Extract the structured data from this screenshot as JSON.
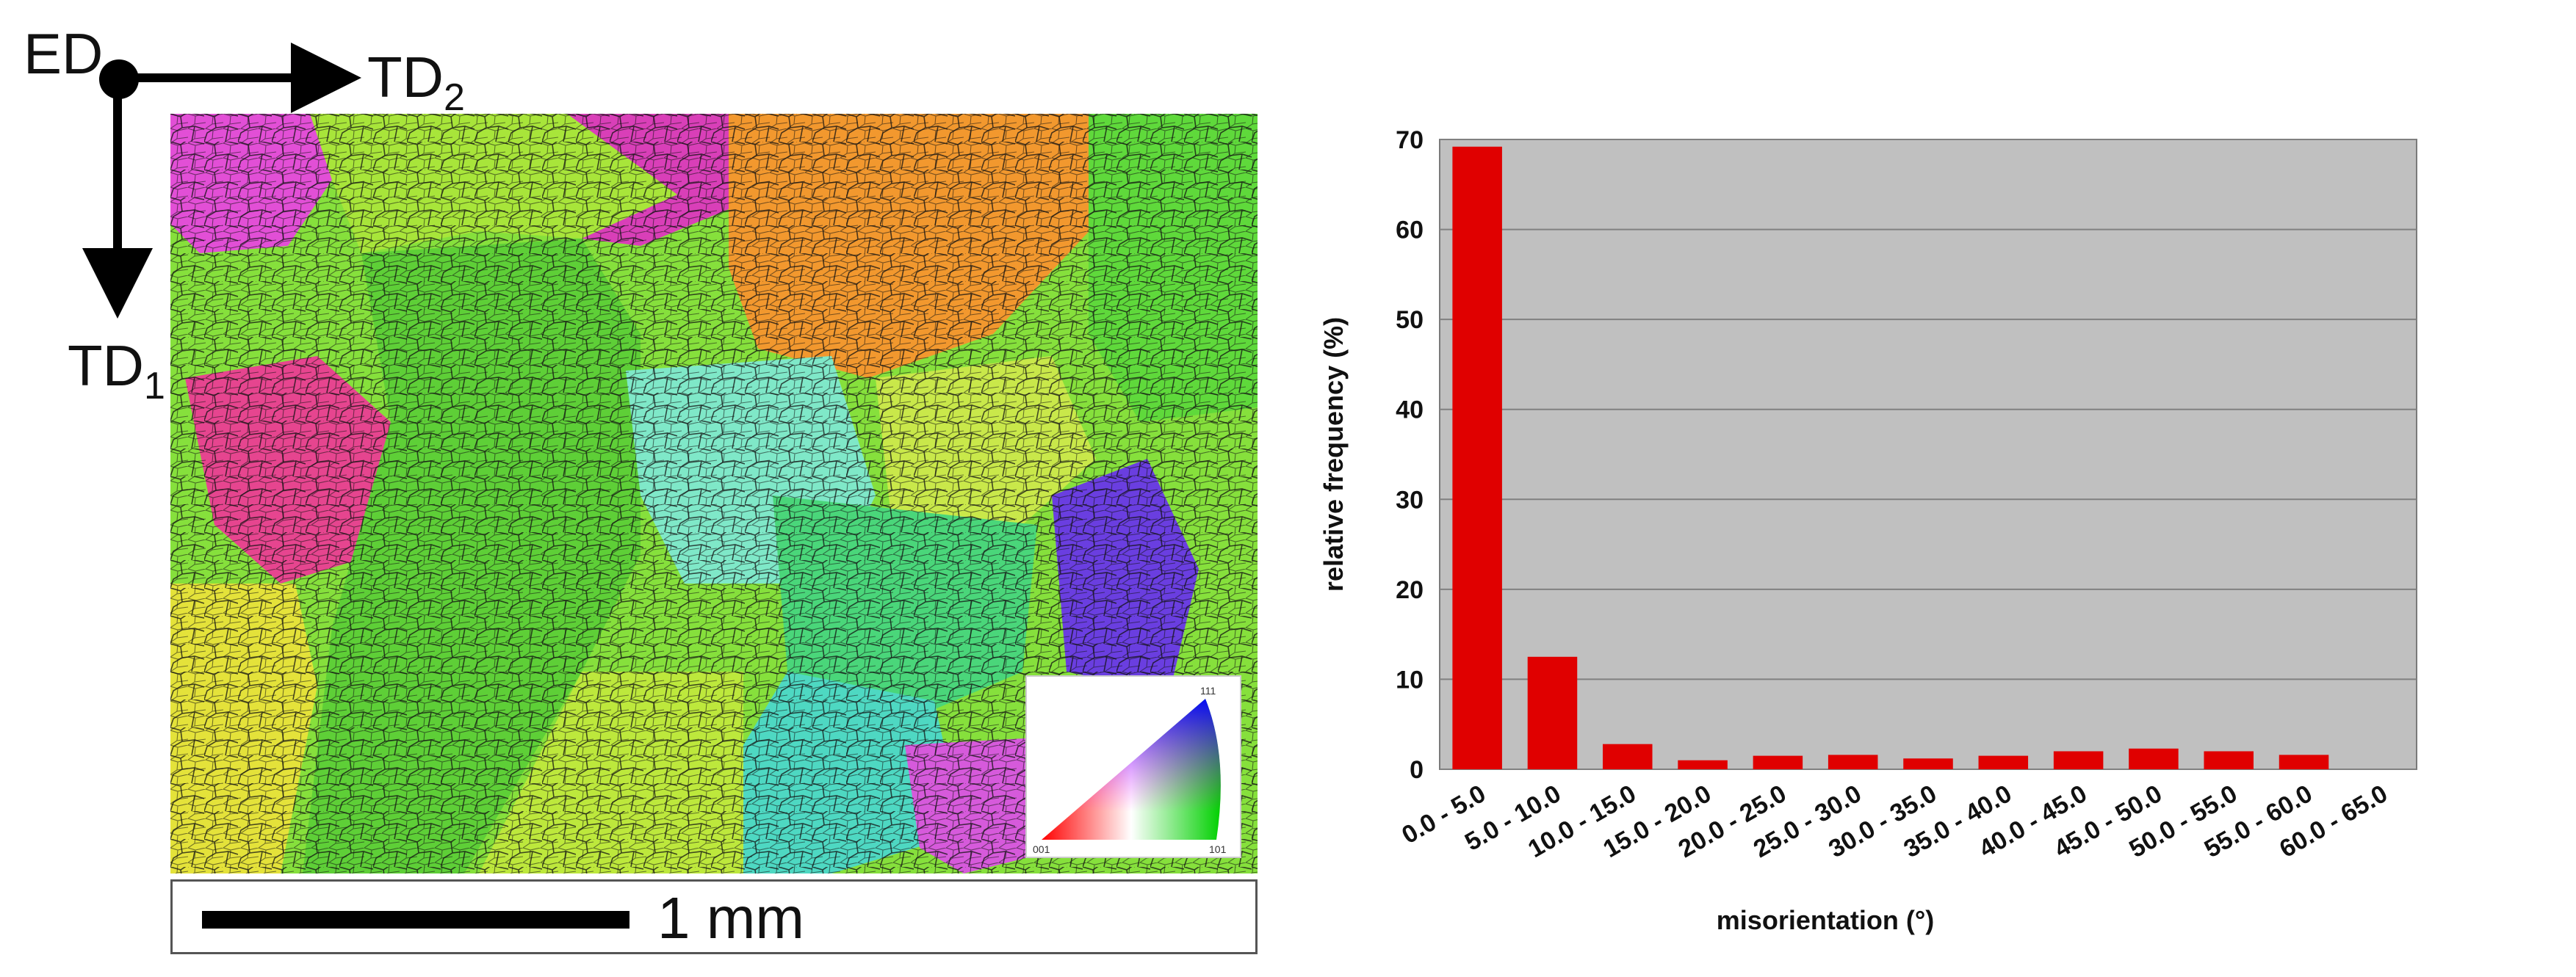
{
  "map_panel": {
    "axes": {
      "origin": "ED",
      "horizontal": "TD",
      "horizontal_sub": "2",
      "vertical": "TD",
      "vertical_sub": "1"
    },
    "scale_bar": {
      "label": "1 mm"
    },
    "ipf_legend": {
      "corner_top": "111",
      "corner_left": "001",
      "corner_right": "101"
    },
    "colors": {
      "bar": "#e00000",
      "plot_bg": "#c0c0c0",
      "grid": "#808080"
    }
  },
  "chart_data": {
    "type": "bar",
    "title": "",
    "xlabel": "misorientation (°)",
    "ylabel": "relative frequency (%)",
    "ylim": [
      0,
      70
    ],
    "yticks": [
      0,
      10,
      20,
      30,
      40,
      50,
      60,
      70
    ],
    "grid": true,
    "categories": [
      "0.0 - 5.0",
      "5.0 - 10.0",
      "10.0 - 15.0",
      "15.0 - 20.0",
      "20.0 - 25.0",
      "25.0 - 30.0",
      "30.0 - 35.0",
      "35.0 - 40.0",
      "40.0 - 45.0",
      "45.0 - 50.0",
      "50.0 - 55.0",
      "55.0 - 60.0",
      "60.0 - 65.0"
    ],
    "values": [
      69.2,
      12.5,
      2.8,
      1.0,
      1.5,
      1.6,
      1.2,
      1.5,
      2.0,
      2.3,
      2.0,
      1.6,
      0.0
    ]
  }
}
